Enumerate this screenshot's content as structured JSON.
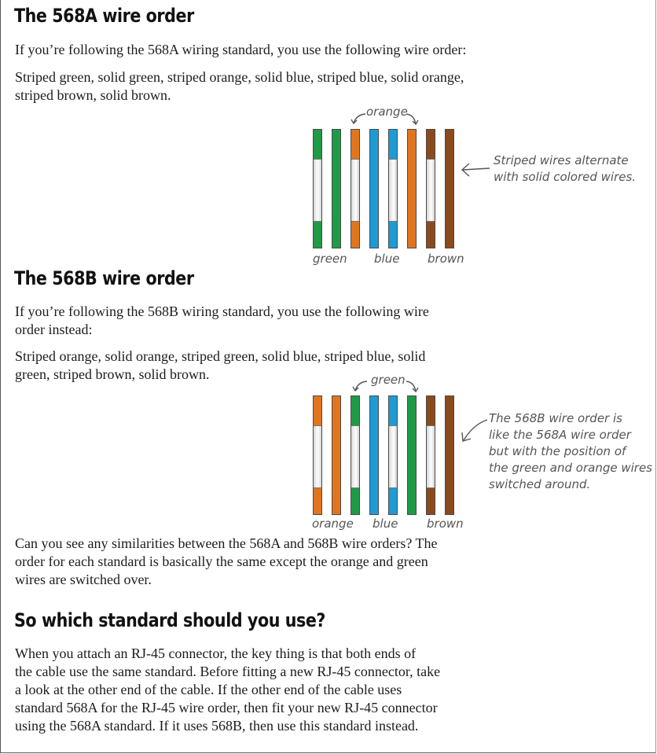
{
  "colors": {
    "green": "#1f9a47",
    "orange": "#e0751d",
    "blue": "#1e9bd4",
    "brown": "#8a4a1c",
    "white": "#f4f4f4",
    "annotation": "#555555"
  },
  "section_a": {
    "heading": "The 568A wire order",
    "intro": "If you’re following the 568A wiring standard, you use the following wire order:",
    "order_text": "Striped green, solid green, striped orange, solid blue, striped blue, solid orange, striped brown, solid brown.",
    "diagram": {
      "wires": [
        {
          "color": "green",
          "striped": true
        },
        {
          "color": "green",
          "striped": false
        },
        {
          "color": "orange",
          "striped": true
        },
        {
          "color": "blue",
          "striped": false
        },
        {
          "color": "blue",
          "striped": true
        },
        {
          "color": "orange",
          "striped": false
        },
        {
          "color": "brown",
          "striped": true
        },
        {
          "color": "brown",
          "striped": false
        }
      ],
      "top_label": "orange",
      "bottom_labels": [
        "green",
        "blue",
        "brown"
      ],
      "note_lines": [
        "Striped wires alternate",
        "with solid colored wires."
      ]
    }
  },
  "section_b": {
    "heading": "The 568B wire order",
    "intro_lines": [
      "If you’re following the 568B wiring standard, you use the following wire",
      "order instead:"
    ],
    "order_lines": [
      "Striped orange, solid orange, striped green, solid blue, striped blue, solid",
      "green, striped brown, solid brown."
    ],
    "diagram": {
      "wires": [
        {
          "color": "orange",
          "striped": true
        },
        {
          "color": "orange",
          "striped": false
        },
        {
          "color": "green",
          "striped": true
        },
        {
          "color": "blue",
          "striped": false
        },
        {
          "color": "blue",
          "striped": true
        },
        {
          "color": "green",
          "striped": false
        },
        {
          "color": "brown",
          "striped": true
        },
        {
          "color": "brown",
          "striped": false
        }
      ],
      "top_label": "green",
      "bottom_labels": [
        "orange",
        "blue",
        "brown"
      ],
      "note_lines": [
        "The 568B wire order is",
        "like the 568A wire order",
        "but with the position of",
        "the green and orange wires",
        "switched around."
      ]
    }
  },
  "comparison": {
    "lines": [
      "Can you see any similarities between the 568A and 568B wire orders? The",
      "order for each standard is basically the same except the orange and green",
      "wires are switched over."
    ]
  },
  "section_c": {
    "heading": "So which standard should you use?",
    "lines": [
      "When you attach an RJ-45 connector, the key thing is that both ends of",
      "the cable use the same standard. Before fitting a new RJ-45 connector, take",
      "a look at the other end of the cable. If the other end of the cable uses",
      "standard 568A for the RJ-45 wire order, then fit your new RJ-45 connector",
      "using the 568A standard. If it uses 568B, then use this standard instead."
    ]
  }
}
